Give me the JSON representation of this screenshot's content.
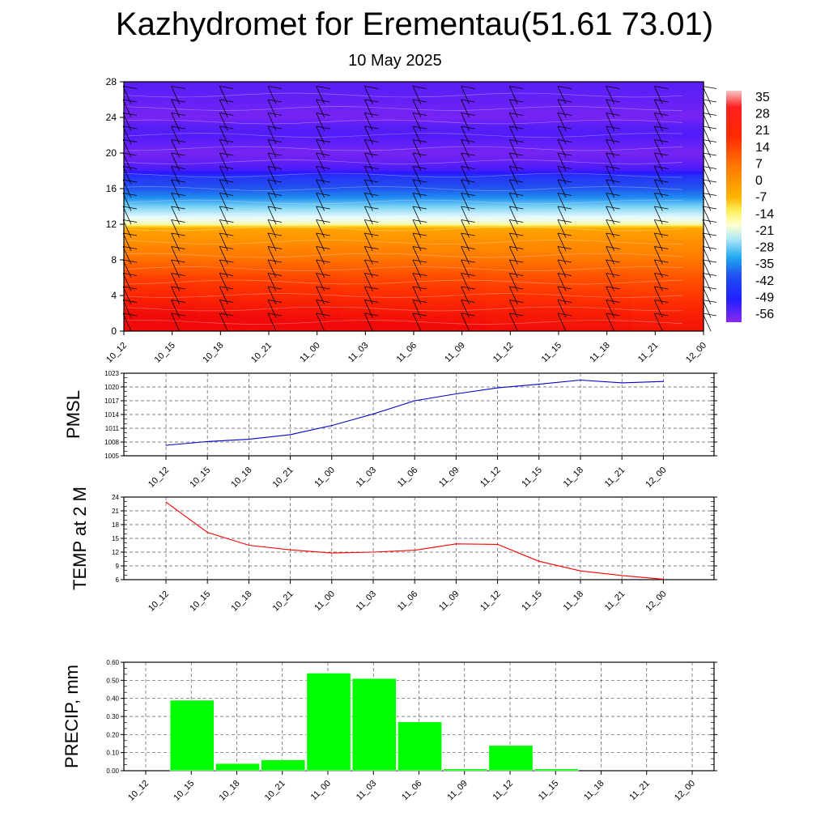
{
  "header": {
    "title": "Kazhydromet for Erementau(51.61 73.01)",
    "subtitle": "10 May 2025"
  },
  "chart_data": [
    {
      "type": "heatmap",
      "title": "",
      "xlabel": "",
      "ylabel": "",
      "x_ticks": [
        "10_12",
        "10_15",
        "10_18",
        "10_21",
        "11_00",
        "11_03",
        "11_06",
        "11_09",
        "11_12",
        "11_15",
        "11_18",
        "11_21",
        "12_00"
      ],
      "y_ticks": [
        0,
        4,
        8,
        12,
        16,
        20,
        24,
        28
      ],
      "ylim": [
        0,
        28
      ],
      "colorbar_labels": [
        "35",
        "28",
        "21",
        "14",
        "7",
        "0",
        "-7",
        "-14",
        "-21",
        "-28",
        "-35",
        "-42",
        "-49",
        "-56"
      ],
      "colorbar_range": [
        -60,
        38
      ],
      "description_of_values": "temperature contours with wind barbs",
      "profile_levels": [
        0,
        2,
        4,
        6,
        8,
        10,
        11.5,
        12,
        13,
        14,
        15,
        16,
        17,
        17.5,
        18,
        19,
        20,
        21,
        22,
        23,
        24,
        26,
        28
      ],
      "profile_values": [
        28,
        25,
        21,
        18,
        14,
        10,
        6,
        -12,
        -17,
        -22,
        -30,
        -38,
        -42,
        -45,
        -53,
        -56,
        -58,
        -56,
        -54,
        -55,
        -58,
        -56,
        -55
      ],
      "grid": false
    },
    {
      "type": "line",
      "ylabel": "PMSL",
      "categories": [
        "10_12",
        "10_15",
        "10_18",
        "10_21",
        "11_00",
        "11_03",
        "11_06",
        "11_09",
        "11_12",
        "11_15",
        "11_18",
        "11_21",
        "12_00"
      ],
      "y_ticks": [
        1005,
        1008,
        1011,
        1014,
        1017,
        1020,
        1023
      ],
      "ylim": [
        1005,
        1023
      ],
      "values": [
        1007.3,
        1008.1,
        1008.6,
        1009.6,
        1011.6,
        1014.1,
        1017.0,
        1018.5,
        1019.8,
        1020.6,
        1021.5,
        1020.9,
        1021.2
      ],
      "color": "#0000cc",
      "grid": true
    },
    {
      "type": "line",
      "ylabel": "TEMP at 2 M",
      "categories": [
        "10_12",
        "10_15",
        "10_18",
        "10_21",
        "11_00",
        "11_03",
        "11_06",
        "11_09",
        "11_12",
        "11_15",
        "11_18",
        "11_21",
        "12_00"
      ],
      "y_ticks": [
        6,
        9,
        12,
        15,
        18,
        21,
        24
      ],
      "ylim": [
        6,
        24
      ],
      "values": [
        22.9,
        16.3,
        13.5,
        12.5,
        11.8,
        12.0,
        12.4,
        13.8,
        13.7,
        10.0,
        7.9,
        6.9,
        6.1
      ],
      "color": "#ff0000",
      "grid": true
    },
    {
      "type": "bar",
      "ylabel": "PRECIP, mm",
      "categories": [
        "10_12",
        "10_15",
        "10_18",
        "10_21",
        "11_00",
        "11_03",
        "11_06",
        "11_09",
        "11_12",
        "11_15",
        "11_18",
        "11_21",
        "12_00"
      ],
      "y_ticks": [
        "0.00",
        "0.10",
        "0.20",
        "0.30",
        "0.40",
        "0.50",
        "0.60"
      ],
      "ylim": [
        0,
        0.6
      ],
      "values": [
        0,
        0.39,
        0.04,
        0.06,
        0.54,
        0.51,
        0.27,
        0.01,
        0.14,
        0.01,
        0,
        0,
        0
      ],
      "color": "#00ff00",
      "grid": true
    }
  ]
}
